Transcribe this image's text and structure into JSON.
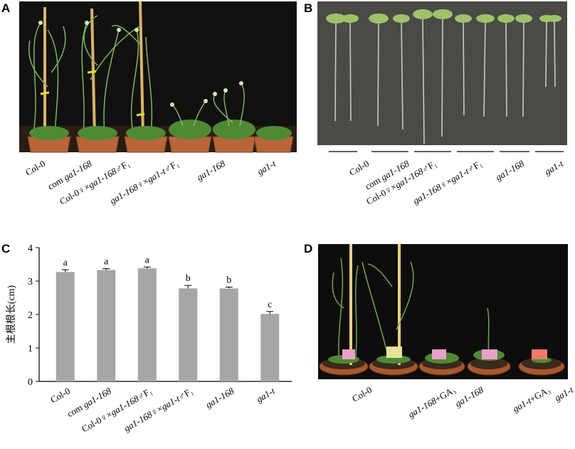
{
  "panels": {
    "A": {
      "letter": "A",
      "labels": [
        {
          "pre": "Col-0",
          "ital": "",
          "post": ""
        },
        {
          "pre": "com ",
          "ital": "ga1-168",
          "post": ""
        },
        {
          "pre": "Col-0♀×",
          "ital": "ga1-168",
          "post": "♂F₁"
        },
        {
          "pre": "",
          "ital": "ga1-168",
          "post": "♀×",
          "ital2": "ga1-t",
          "post2": "♂F₁"
        },
        {
          "pre": "",
          "ital": "ga1-168",
          "post": ""
        },
        {
          "pre": "",
          "ital": "ga1-t",
          "post": ""
        }
      ]
    },
    "B": {
      "letter": "B",
      "labels": [
        {
          "pre": "Col-0",
          "ital": "",
          "post": ""
        },
        {
          "pre": "com ",
          "ital": "ga1-168",
          "post": ""
        },
        {
          "pre": "Col-0♀×",
          "ital": "ga1-168",
          "post": "♂F₁"
        },
        {
          "pre": "",
          "ital": "ga1-168",
          "post": "♀×",
          "ital2": "ga1-t",
          "post2": "♂F₁"
        },
        {
          "pre": "",
          "ital": "ga1-168",
          "post": ""
        },
        {
          "pre": "",
          "ital": "ga1-t",
          "post": ""
        }
      ]
    },
    "C": {
      "letter": "C"
    },
    "D": {
      "letter": "D",
      "labels": [
        {
          "pre": "Col-0",
          "ital": "",
          "post": ""
        },
        {
          "pre": "",
          "ital": "ga1-168",
          "post": "+GA₃"
        },
        {
          "pre": "",
          "ital": "ga1-168",
          "post": ""
        },
        {
          "pre": "",
          "ital": "ga1-t",
          "post": "+GA₃"
        },
        {
          "pre": "",
          "ital": "ga1-t",
          "post": ""
        }
      ]
    }
  },
  "chart_data": {
    "type": "bar",
    "ylabel": "主根根长(cm)",
    "ylim": [
      0,
      4
    ],
    "yticks": [
      0,
      1,
      2,
      3,
      4
    ],
    "categories": [
      "Col-0",
      "com ga1-168",
      "Col-0♀×ga1-168♂F₁",
      "ga1-168♀×ga1-t♂F₁",
      "ga1-168",
      "ga1-t"
    ],
    "values": [
      3.27,
      3.33,
      3.38,
      2.78,
      2.78,
      2.02
    ],
    "errors": [
      0.07,
      0.04,
      0.04,
      0.09,
      0.04,
      0.07
    ],
    "significance_letters": [
      "a",
      "a",
      "a",
      "b",
      "b",
      "c"
    ],
    "bar_color": "#a6a6a6",
    "grid": false
  }
}
